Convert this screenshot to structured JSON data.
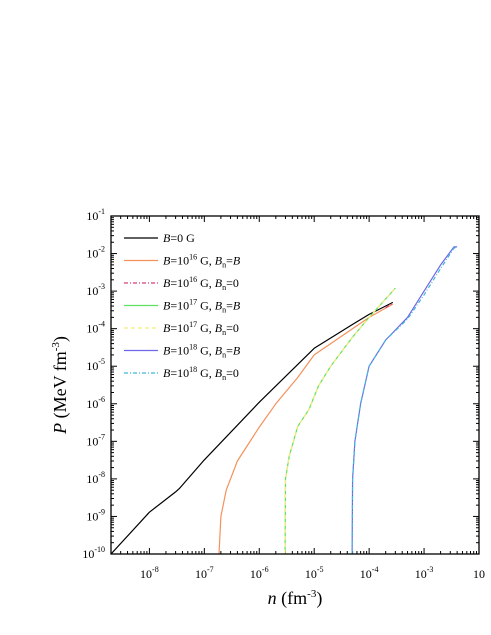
{
  "chart_data": {
    "type": "line",
    "xlabel": {
      "var": "n",
      "unit": " (fm",
      "exp": "-3",
      "close": ")"
    },
    "ylabel": {
      "var": "P",
      "unit": " (MeV fm",
      "exp": "-3",
      "close": ")"
    },
    "x_scale": "log",
    "y_scale": "log",
    "xlim": [
      2e-09,
      0.01
    ],
    "ylim": [
      1e-10,
      0.1
    ],
    "x_ticks": [
      {
        "base": "10",
        "exp": "-8",
        "value": 1e-08
      },
      {
        "base": "10",
        "exp": "-7",
        "value": 1e-07
      },
      {
        "base": "10",
        "exp": "-6",
        "value": 1e-06
      },
      {
        "base": "10",
        "exp": "-5",
        "value": 1e-05
      },
      {
        "base": "10",
        "exp": "-4",
        "value": 0.0001
      },
      {
        "base": "10",
        "exp": "-3",
        "value": 0.001
      },
      {
        "base": "10",
        "exp": "",
        "value": 0.01
      }
    ],
    "y_ticks": [
      {
        "base": "10",
        "exp": "-1",
        "value": 0.1
      },
      {
        "base": "10",
        "exp": "-2",
        "value": 0.01
      },
      {
        "base": "10",
        "exp": "-3",
        "value": 0.001
      },
      {
        "base": "10",
        "exp": "-4",
        "value": 0.0001
      },
      {
        "base": "10",
        "exp": "-5",
        "value": 1e-05
      },
      {
        "base": "10",
        "exp": "-6",
        "value": 1e-06
      },
      {
        "base": "10",
        "exp": "-7",
        "value": 1e-07
      },
      {
        "base": "10",
        "exp": "-8",
        "value": 1e-08
      },
      {
        "base": "10",
        "exp": "-9",
        "value": 1e-09
      },
      {
        "base": "10",
        "exp": "-10",
        "value": 1e-10
      }
    ],
    "legend_position": "top-left",
    "series": [
      {
        "label_parts": [
          [
            "B",
            "it"
          ],
          [
            "=0 G",
            ""
          ]
        ],
        "color": "#000000",
        "dash": "",
        "x": [
          2e-09,
          1e-08,
          3e-08,
          3.5e-08,
          1e-07,
          1e-06,
          1e-05,
          5e-05,
          0.0001,
          0.00027
        ],
        "y": [
          1e-10,
          1.3e-09,
          4.5e-09,
          5.5e-09,
          3.2e-08,
          1.1e-06,
          3e-05,
          0.00013,
          0.00024,
          0.0005
        ]
      },
      {
        "label_parts": [
          [
            "B",
            "it"
          ],
          [
            "=10",
            ""
          ],
          [
            "16",
            "sup"
          ],
          [
            " G, ",
            ""
          ],
          [
            "B",
            "it"
          ],
          [
            "n",
            "sub"
          ],
          [
            "=",
            ""
          ],
          [
            "B",
            "it"
          ]
        ],
        "color": "#f4915c",
        "dash": "",
        "x": [
          1.85e-07,
          2e-07,
          2.5e-07,
          4e-07,
          1e-06,
          2e-06,
          5e-06,
          1e-05,
          3e-05,
          0.0001,
          0.00027
        ],
        "y": [
          1e-10,
          1e-09,
          5e-09,
          3e-08,
          2.4e-07,
          1e-06,
          5e-06,
          2e-05,
          6e-05,
          0.0002,
          0.00045
        ]
      },
      {
        "label_parts": [
          [
            "B",
            "it"
          ],
          [
            "=10",
            ""
          ],
          [
            "16",
            "sup"
          ],
          [
            " G, ",
            ""
          ],
          [
            "B",
            "it"
          ],
          [
            "n",
            "sub"
          ],
          [
            "=0",
            ""
          ]
        ],
        "color": "#d8427c",
        "dash": "4,2,1,2",
        "x": [
          0.0002,
          0.00027
        ],
        "y": [
          0.00036,
          0.00048
        ]
      },
      {
        "label_parts": [
          [
            "B",
            "it"
          ],
          [
            "=10",
            ""
          ],
          [
            "17",
            "sup"
          ],
          [
            " G, ",
            ""
          ],
          [
            "B",
            "it"
          ],
          [
            "n",
            "sub"
          ],
          [
            "=",
            ""
          ],
          [
            "B",
            "it"
          ]
        ],
        "color": "#5fe05f",
        "dash": "",
        "x": [
          2.95e-06,
          3e-06,
          3.5e-06,
          5e-06,
          8e-06,
          1.2e-05,
          2e-05,
          5e-05,
          0.0001,
          0.0003
        ],
        "y": [
          1e-10,
          1e-08,
          4e-08,
          2.5e-07,
          7e-07,
          3e-06,
          1e-05,
          6e-05,
          0.0002,
          0.0012
        ]
      },
      {
        "label_parts": [
          [
            "B",
            "it"
          ],
          [
            "=10",
            ""
          ],
          [
            "17",
            "sup"
          ],
          [
            " G, ",
            ""
          ],
          [
            "B",
            "it"
          ],
          [
            "n",
            "sub"
          ],
          [
            "=0",
            ""
          ]
        ],
        "color": "#f2ec7a",
        "dash": "4,3",
        "x": [
          2.95e-06,
          3e-06,
          3.5e-06,
          5e-06,
          8e-06,
          1.2e-05,
          2e-05,
          5e-05,
          0.0001,
          0.0003
        ],
        "y": [
          1e-10,
          1e-08,
          4e-08,
          2.5e-07,
          7e-07,
          3e-06,
          1e-05,
          6e-05,
          0.0002,
          0.0012
        ]
      },
      {
        "label_parts": [
          [
            "B",
            "it"
          ],
          [
            "=10",
            ""
          ],
          [
            "18",
            "sup"
          ],
          [
            " G, ",
            ""
          ],
          [
            "B",
            "it"
          ],
          [
            "n",
            "sub"
          ],
          [
            "=",
            ""
          ],
          [
            "B",
            "it"
          ]
        ],
        "color": "#6e66e8",
        "dash": "",
        "x": [
          4.9e-05,
          5e-05,
          5.5e-05,
          7e-05,
          0.0001,
          0.0002,
          0.0005,
          0.001,
          0.002,
          0.0035,
          0.004
        ],
        "y": [
          1e-10,
          1e-08,
          1e-07,
          1e-06,
          1e-05,
          5e-05,
          0.0002,
          0.001,
          0.005,
          0.015,
          0.015
        ]
      },
      {
        "label_parts": [
          [
            "B",
            "it"
          ],
          [
            "=10",
            ""
          ],
          [
            "18",
            "sup"
          ],
          [
            " G, ",
            ""
          ],
          [
            "B",
            "it"
          ],
          [
            "n",
            "sub"
          ],
          [
            "=0",
            ""
          ]
        ],
        "color": "#3fb8d6",
        "dash": "4,2,1,2",
        "x": [
          4.9e-05,
          5e-05,
          5.5e-05,
          7e-05,
          0.0001,
          0.0002,
          0.0005,
          0.001,
          0.002,
          0.0035,
          0.004
        ],
        "y": [
          1e-10,
          1e-08,
          1e-07,
          1e-06,
          1e-05,
          5e-05,
          0.00018,
          0.0008,
          0.004,
          0.014,
          0.015
        ]
      }
    ]
  }
}
